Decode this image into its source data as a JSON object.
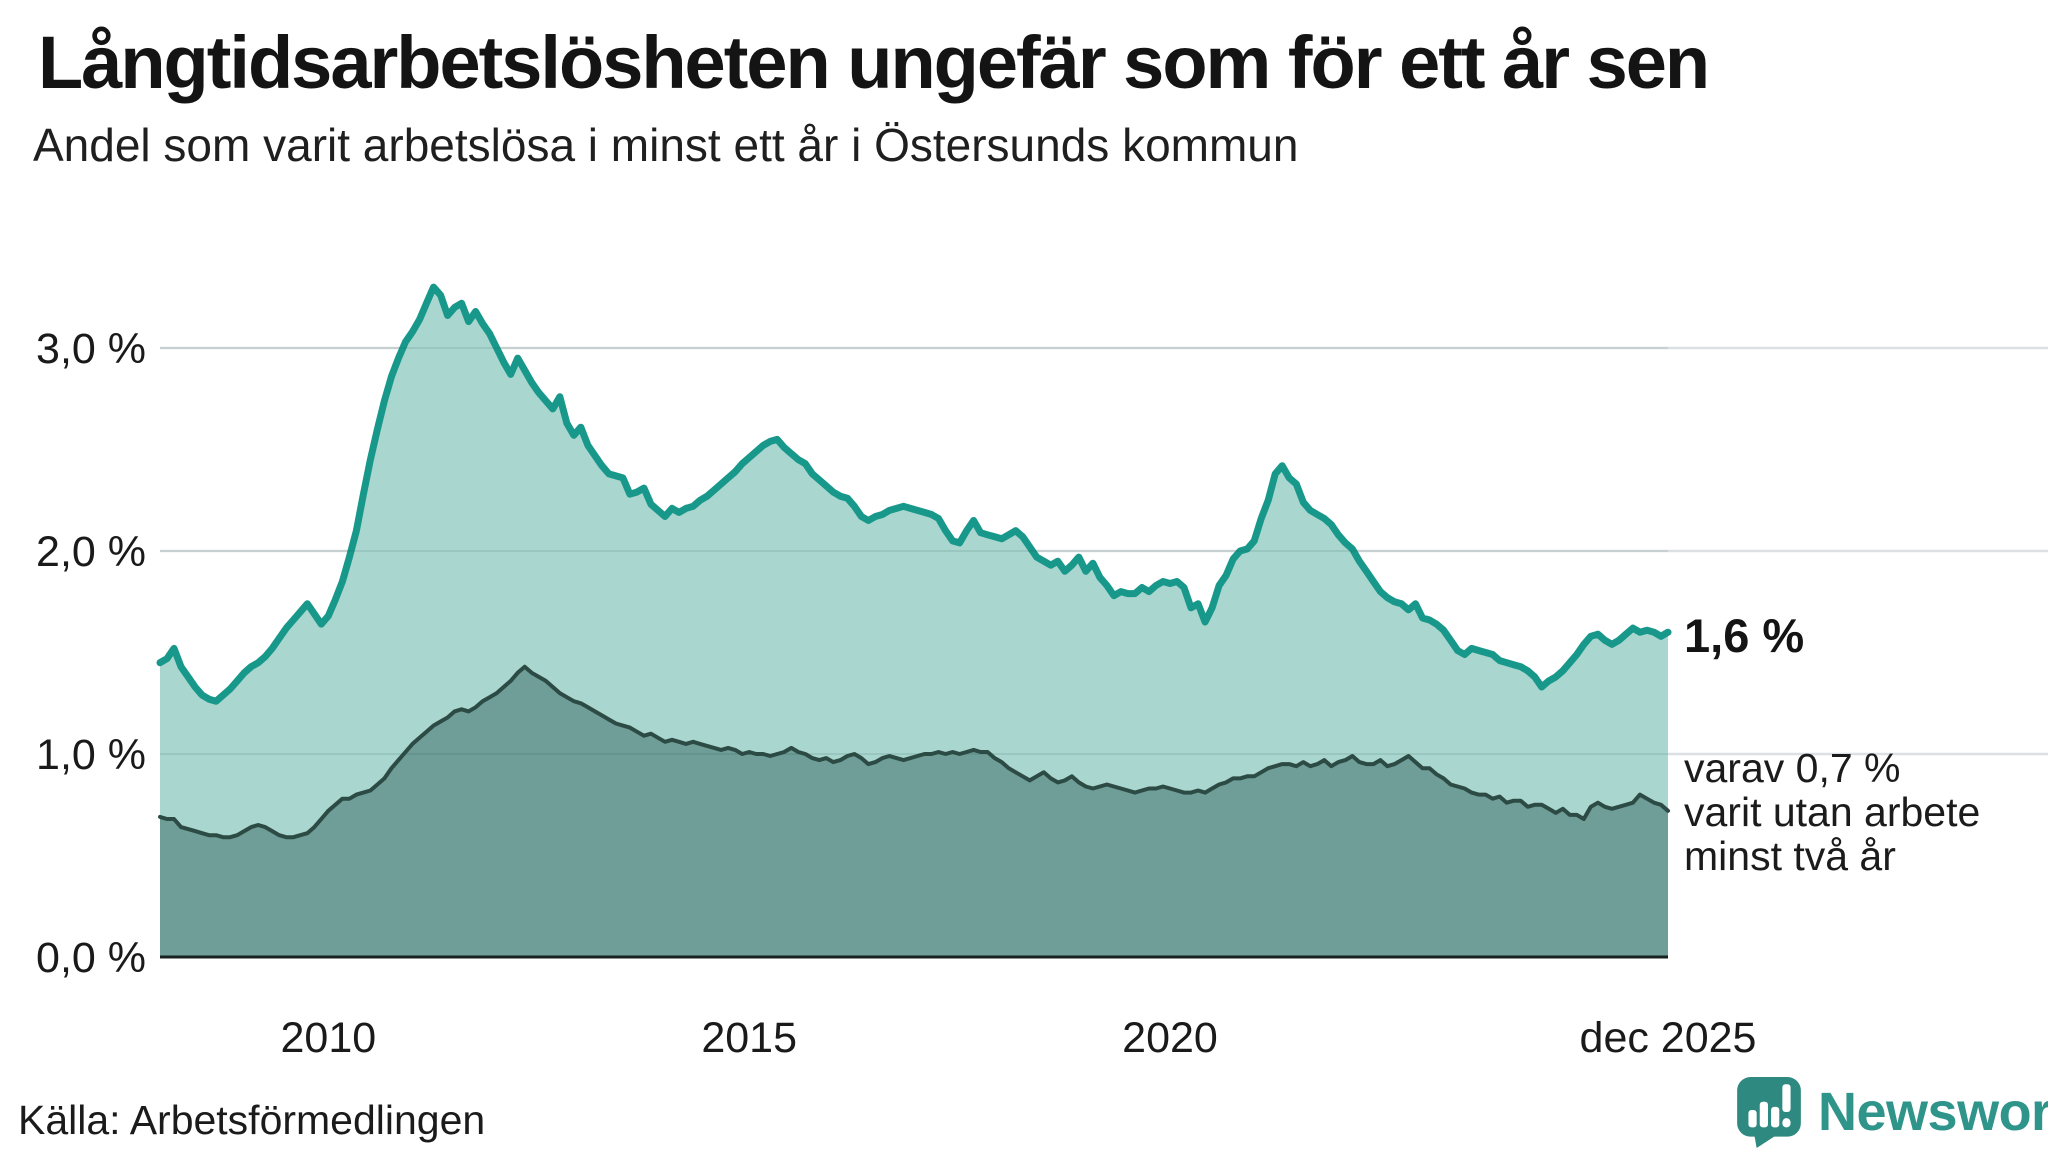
{
  "title": "Långtidsarbetslösheten ungefär som för ett år sen",
  "subtitle": "Andel som varit arbetslösa i minst ett år i Östersunds kommun",
  "source": "Källa: Arbetsförmedlingen",
  "branding": {
    "logo_text": "Newsworthy"
  },
  "annotations": {
    "end_value_label": "1,6 %",
    "sub_series_label_lines": [
      "varav 0,7 %",
      "varit utan arbete",
      "minst två år"
    ]
  },
  "colors": {
    "upper_line": "#18988a",
    "upper_fill": "#a9d6ce",
    "lower_line": "#2d4b45",
    "lower_fill": "#6f9d98",
    "gridline": "#dce0e3",
    "gridline_over_fill": "rgba(22,70,62,0.10)",
    "axis_line": "#17211f",
    "text": "#1a1a1a",
    "brand_teal": "#2f948a"
  },
  "chart_data": {
    "type": "area",
    "title": "Långtidsarbetslösheten ungefär som för ett år sen",
    "subtitle": "Andel som varit arbetslösa i minst ett år i Östersunds kommun",
    "x_start_year": 2008,
    "x_step_months": 1,
    "xlim": [
      2008.0,
      2025.9167
    ],
    "ylim": [
      0,
      3.45
    ],
    "grid": true,
    "legend_position": "none",
    "y_gridlines": [
      {
        "value": 3.0,
        "label": "3,0 %"
      },
      {
        "value": 2.0,
        "label": "2,0 %"
      },
      {
        "value": 1.0,
        "label": "1,0 %"
      },
      {
        "value": 0.0,
        "label": "0,0 %"
      }
    ],
    "x_ticks": [
      {
        "t": 2010,
        "label": "2010"
      },
      {
        "t": 2015,
        "label": "2015"
      },
      {
        "t": 2020,
        "label": "2020"
      },
      {
        "t": 2025.9167,
        "label": "dec 2025"
      }
    ],
    "series": [
      {
        "name": "Andel arbetslösa minst ett år",
        "end_label": "1,6 %",
        "values": [
          1.45,
          1.47,
          1.52,
          1.43,
          1.38,
          1.33,
          1.29,
          1.27,
          1.26,
          1.29,
          1.32,
          1.36,
          1.4,
          1.43,
          1.45,
          1.48,
          1.52,
          1.57,
          1.62,
          1.66,
          1.7,
          1.74,
          1.69,
          1.64,
          1.68,
          1.76,
          1.85,
          1.97,
          2.1,
          2.28,
          2.45,
          2.6,
          2.74,
          2.86,
          2.95,
          3.03,
          3.08,
          3.14,
          3.22,
          3.3,
          3.26,
          3.16,
          3.2,
          3.22,
          3.13,
          3.18,
          3.12,
          3.07,
          3.0,
          2.93,
          2.87,
          2.95,
          2.89,
          2.83,
          2.78,
          2.74,
          2.7,
          2.76,
          2.63,
          2.57,
          2.61,
          2.52,
          2.47,
          2.42,
          2.38,
          2.37,
          2.36,
          2.28,
          2.29,
          2.31,
          2.23,
          2.2,
          2.17,
          2.21,
          2.19,
          2.21,
          2.22,
          2.25,
          2.27,
          2.3,
          2.33,
          2.36,
          2.39,
          2.43,
          2.46,
          2.49,
          2.52,
          2.54,
          2.55,
          2.51,
          2.48,
          2.45,
          2.43,
          2.38,
          2.35,
          2.32,
          2.29,
          2.27,
          2.26,
          2.22,
          2.17,
          2.15,
          2.17,
          2.18,
          2.2,
          2.21,
          2.22,
          2.21,
          2.2,
          2.19,
          2.18,
          2.16,
          2.1,
          2.05,
          2.04,
          2.1,
          2.15,
          2.09,
          2.08,
          2.07,
          2.06,
          2.08,
          2.1,
          2.07,
          2.02,
          1.97,
          1.95,
          1.93,
          1.95,
          1.9,
          1.93,
          1.97,
          1.9,
          1.94,
          1.87,
          1.83,
          1.78,
          1.8,
          1.79,
          1.79,
          1.82,
          1.8,
          1.83,
          1.85,
          1.84,
          1.85,
          1.82,
          1.72,
          1.74,
          1.65,
          1.72,
          1.83,
          1.88,
          1.96,
          2.0,
          2.01,
          2.05,
          2.16,
          2.25,
          2.38,
          2.42,
          2.36,
          2.33,
          2.24,
          2.2,
          2.18,
          2.16,
          2.13,
          2.08,
          2.04,
          2.01,
          1.95,
          1.9,
          1.85,
          1.8,
          1.77,
          1.75,
          1.74,
          1.71,
          1.74,
          1.67,
          1.66,
          1.64,
          1.61,
          1.56,
          1.51,
          1.49,
          1.52,
          1.51,
          1.5,
          1.49,
          1.46,
          1.45,
          1.44,
          1.43,
          1.41,
          1.38,
          1.33,
          1.36,
          1.38,
          1.41,
          1.45,
          1.49,
          1.54,
          1.58,
          1.59,
          1.56,
          1.54,
          1.56,
          1.59,
          1.62,
          1.6,
          1.61,
          1.6,
          1.58,
          1.6
        ]
      },
      {
        "name": "varav arbetslösa minst två år",
        "end_label": "0,7 %",
        "values": [
          0.69,
          0.68,
          0.68,
          0.64,
          0.63,
          0.62,
          0.61,
          0.6,
          0.6,
          0.59,
          0.59,
          0.6,
          0.62,
          0.64,
          0.65,
          0.64,
          0.62,
          0.6,
          0.59,
          0.59,
          0.6,
          0.61,
          0.64,
          0.68,
          0.72,
          0.75,
          0.78,
          0.78,
          0.8,
          0.81,
          0.82,
          0.85,
          0.88,
          0.93,
          0.97,
          1.01,
          1.05,
          1.08,
          1.11,
          1.14,
          1.16,
          1.18,
          1.21,
          1.22,
          1.21,
          1.23,
          1.26,
          1.28,
          1.3,
          1.33,
          1.36,
          1.4,
          1.43,
          1.4,
          1.38,
          1.36,
          1.33,
          1.3,
          1.28,
          1.26,
          1.25,
          1.23,
          1.21,
          1.19,
          1.17,
          1.15,
          1.14,
          1.13,
          1.11,
          1.09,
          1.1,
          1.08,
          1.06,
          1.07,
          1.06,
          1.05,
          1.06,
          1.05,
          1.04,
          1.03,
          1.02,
          1.03,
          1.02,
          1.0,
          1.01,
          1.0,
          1.0,
          0.99,
          1.0,
          1.01,
          1.03,
          1.01,
          1.0,
          0.98,
          0.97,
          0.98,
          0.96,
          0.97,
          0.99,
          1.0,
          0.98,
          0.95,
          0.96,
          0.98,
          0.99,
          0.98,
          0.97,
          0.98,
          0.99,
          1.0,
          1.0,
          1.01,
          1.0,
          1.01,
          1.0,
          1.01,
          1.02,
          1.01,
          1.01,
          0.98,
          0.96,
          0.93,
          0.91,
          0.89,
          0.87,
          0.89,
          0.91,
          0.88,
          0.86,
          0.87,
          0.89,
          0.86,
          0.84,
          0.83,
          0.84,
          0.85,
          0.84,
          0.83,
          0.82,
          0.81,
          0.82,
          0.83,
          0.83,
          0.84,
          0.83,
          0.82,
          0.81,
          0.81,
          0.82,
          0.81,
          0.83,
          0.85,
          0.86,
          0.88,
          0.88,
          0.89,
          0.89,
          0.91,
          0.93,
          0.94,
          0.95,
          0.95,
          0.94,
          0.96,
          0.94,
          0.95,
          0.97,
          0.94,
          0.96,
          0.97,
          0.99,
          0.96,
          0.95,
          0.95,
          0.97,
          0.94,
          0.95,
          0.97,
          0.99,
          0.96,
          0.93,
          0.93,
          0.9,
          0.88,
          0.85,
          0.84,
          0.83,
          0.81,
          0.8,
          0.8,
          0.78,
          0.79,
          0.76,
          0.77,
          0.77,
          0.74,
          0.75,
          0.75,
          0.73,
          0.71,
          0.73,
          0.7,
          0.7,
          0.68,
          0.74,
          0.76,
          0.74,
          0.73,
          0.74,
          0.75,
          0.76,
          0.8,
          0.78,
          0.76,
          0.75,
          0.72
        ]
      }
    ]
  }
}
